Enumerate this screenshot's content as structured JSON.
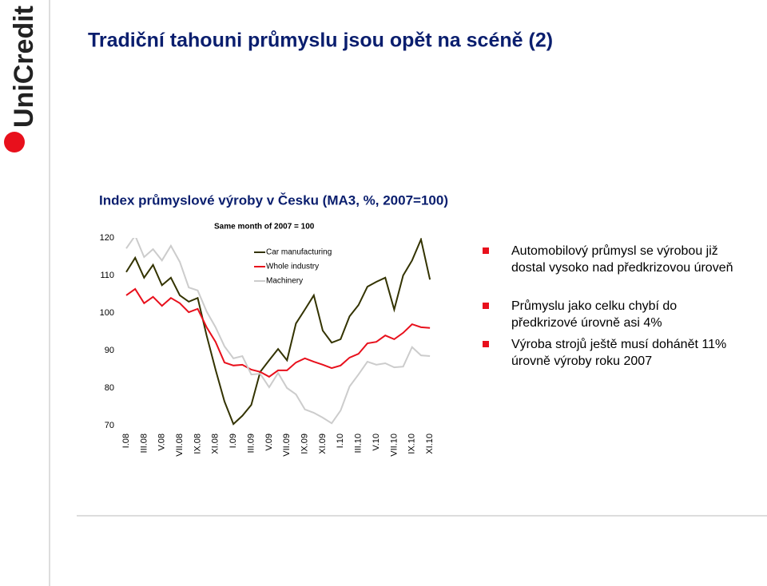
{
  "logo": "UniCredit",
  "slide_title": "Tradiční tahouni průmyslu jsou opět na scéně (2)",
  "bullets": [
    "Automobilový průmysl se výrobou již dostal vysoko nad předkrizovou úroveň",
    "Průmyslu jako celku chybí do předkrizové úrovně asi 4%",
    "Výroba strojů ještě musí dohánět 11% úrovně výroby roku 2007"
  ],
  "chart_data": {
    "type": "line",
    "title": "Index průmyslové výroby v Česku (MA3, %, 2007=100)",
    "subtitle": "Same month of 2007 = 100",
    "categories": [
      "I.08",
      null,
      "III.08",
      null,
      "V.08",
      null,
      "VII.08",
      null,
      "IX.08",
      null,
      "XI.08",
      null,
      "I.09",
      null,
      "III.09",
      null,
      "V.09",
      null,
      "VII.09",
      null,
      "IX.09",
      null,
      "XI.09",
      null,
      "I.10",
      null,
      "III.10",
      null,
      "V.10",
      null,
      "VII.10",
      null,
      "IX.10",
      null,
      "XI.10"
    ],
    "series": [
      {
        "name": "Car manufacturing",
        "color": "#333300",
        "values": [
          110.9,
          114.7,
          109.4,
          112.8,
          107.4,
          109.4,
          104.7,
          103.0,
          104.0,
          94.0,
          84.9,
          76.4,
          70.4,
          72.6,
          75.5,
          84.3,
          87.4,
          90.4,
          87.4,
          97.2,
          100.9,
          104.7,
          95.3,
          92.1,
          93.0,
          99.1,
          102.1,
          107.0,
          108.3,
          109.4,
          100.9,
          110.0,
          114.0,
          119.6,
          108.9
        ]
      },
      {
        "name": "Whole industry",
        "color": "#e8101c",
        "values": [
          104.7,
          106.4,
          102.6,
          104.3,
          101.9,
          104.0,
          102.6,
          100.2,
          101.1,
          96.2,
          92.3,
          86.8,
          86.0,
          86.2,
          84.9,
          84.3,
          83.0,
          84.7,
          84.7,
          86.8,
          87.9,
          87.0,
          86.2,
          85.3,
          86.0,
          88.1,
          89.1,
          91.9,
          92.3,
          94.0,
          93.0,
          94.7,
          97.0,
          96.2,
          96.0
        ]
      },
      {
        "name": "Machinery",
        "color": "#cccccc",
        "values": [
          117.2,
          120.6,
          114.9,
          117.0,
          114.0,
          117.9,
          113.6,
          106.8,
          106.0,
          100.4,
          96.2,
          91.1,
          87.9,
          88.5,
          83.6,
          83.8,
          80.2,
          84.0,
          80.0,
          78.3,
          74.3,
          73.4,
          72.1,
          70.6,
          74.0,
          80.4,
          83.6,
          87.0,
          86.2,
          86.6,
          85.5,
          85.7,
          90.9,
          88.7,
          88.5
        ]
      }
    ],
    "ylim": [
      70,
      120
    ],
    "yticks": [
      70,
      80,
      90,
      100,
      110,
      120
    ],
    "grid": false
  }
}
